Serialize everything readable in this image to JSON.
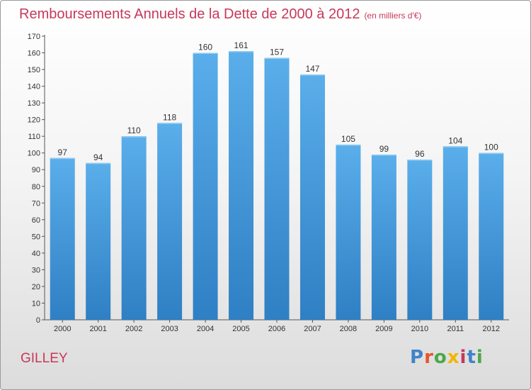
{
  "header": {
    "title": "Remboursements Annuels de la Dette de 2000 à 2012",
    "unit": "(en milliers d'€)"
  },
  "footer": {
    "commune": "GILLEY",
    "logo": "Proxiti"
  },
  "colors": {
    "title": "#c8385a",
    "bar_top": "#5aaeea",
    "bar_bottom": "#2f7fc4",
    "logo_letters": [
      "#3f84c9",
      "#e8542c",
      "#4aa84a",
      "#f5b400",
      "#c8385a",
      "#3f84c9",
      "#4aa84a"
    ]
  },
  "chart_data": {
    "type": "bar",
    "categories": [
      "2000",
      "2001",
      "2002",
      "2003",
      "2004",
      "2005",
      "2006",
      "2007",
      "2008",
      "2009",
      "2010",
      "2011",
      "2012"
    ],
    "values": [
      97,
      94,
      110,
      118,
      160,
      161,
      157,
      147,
      105,
      99,
      96,
      104,
      100
    ],
    "ylim": [
      0,
      170
    ],
    "ytick_step": 10,
    "grid": false
  }
}
